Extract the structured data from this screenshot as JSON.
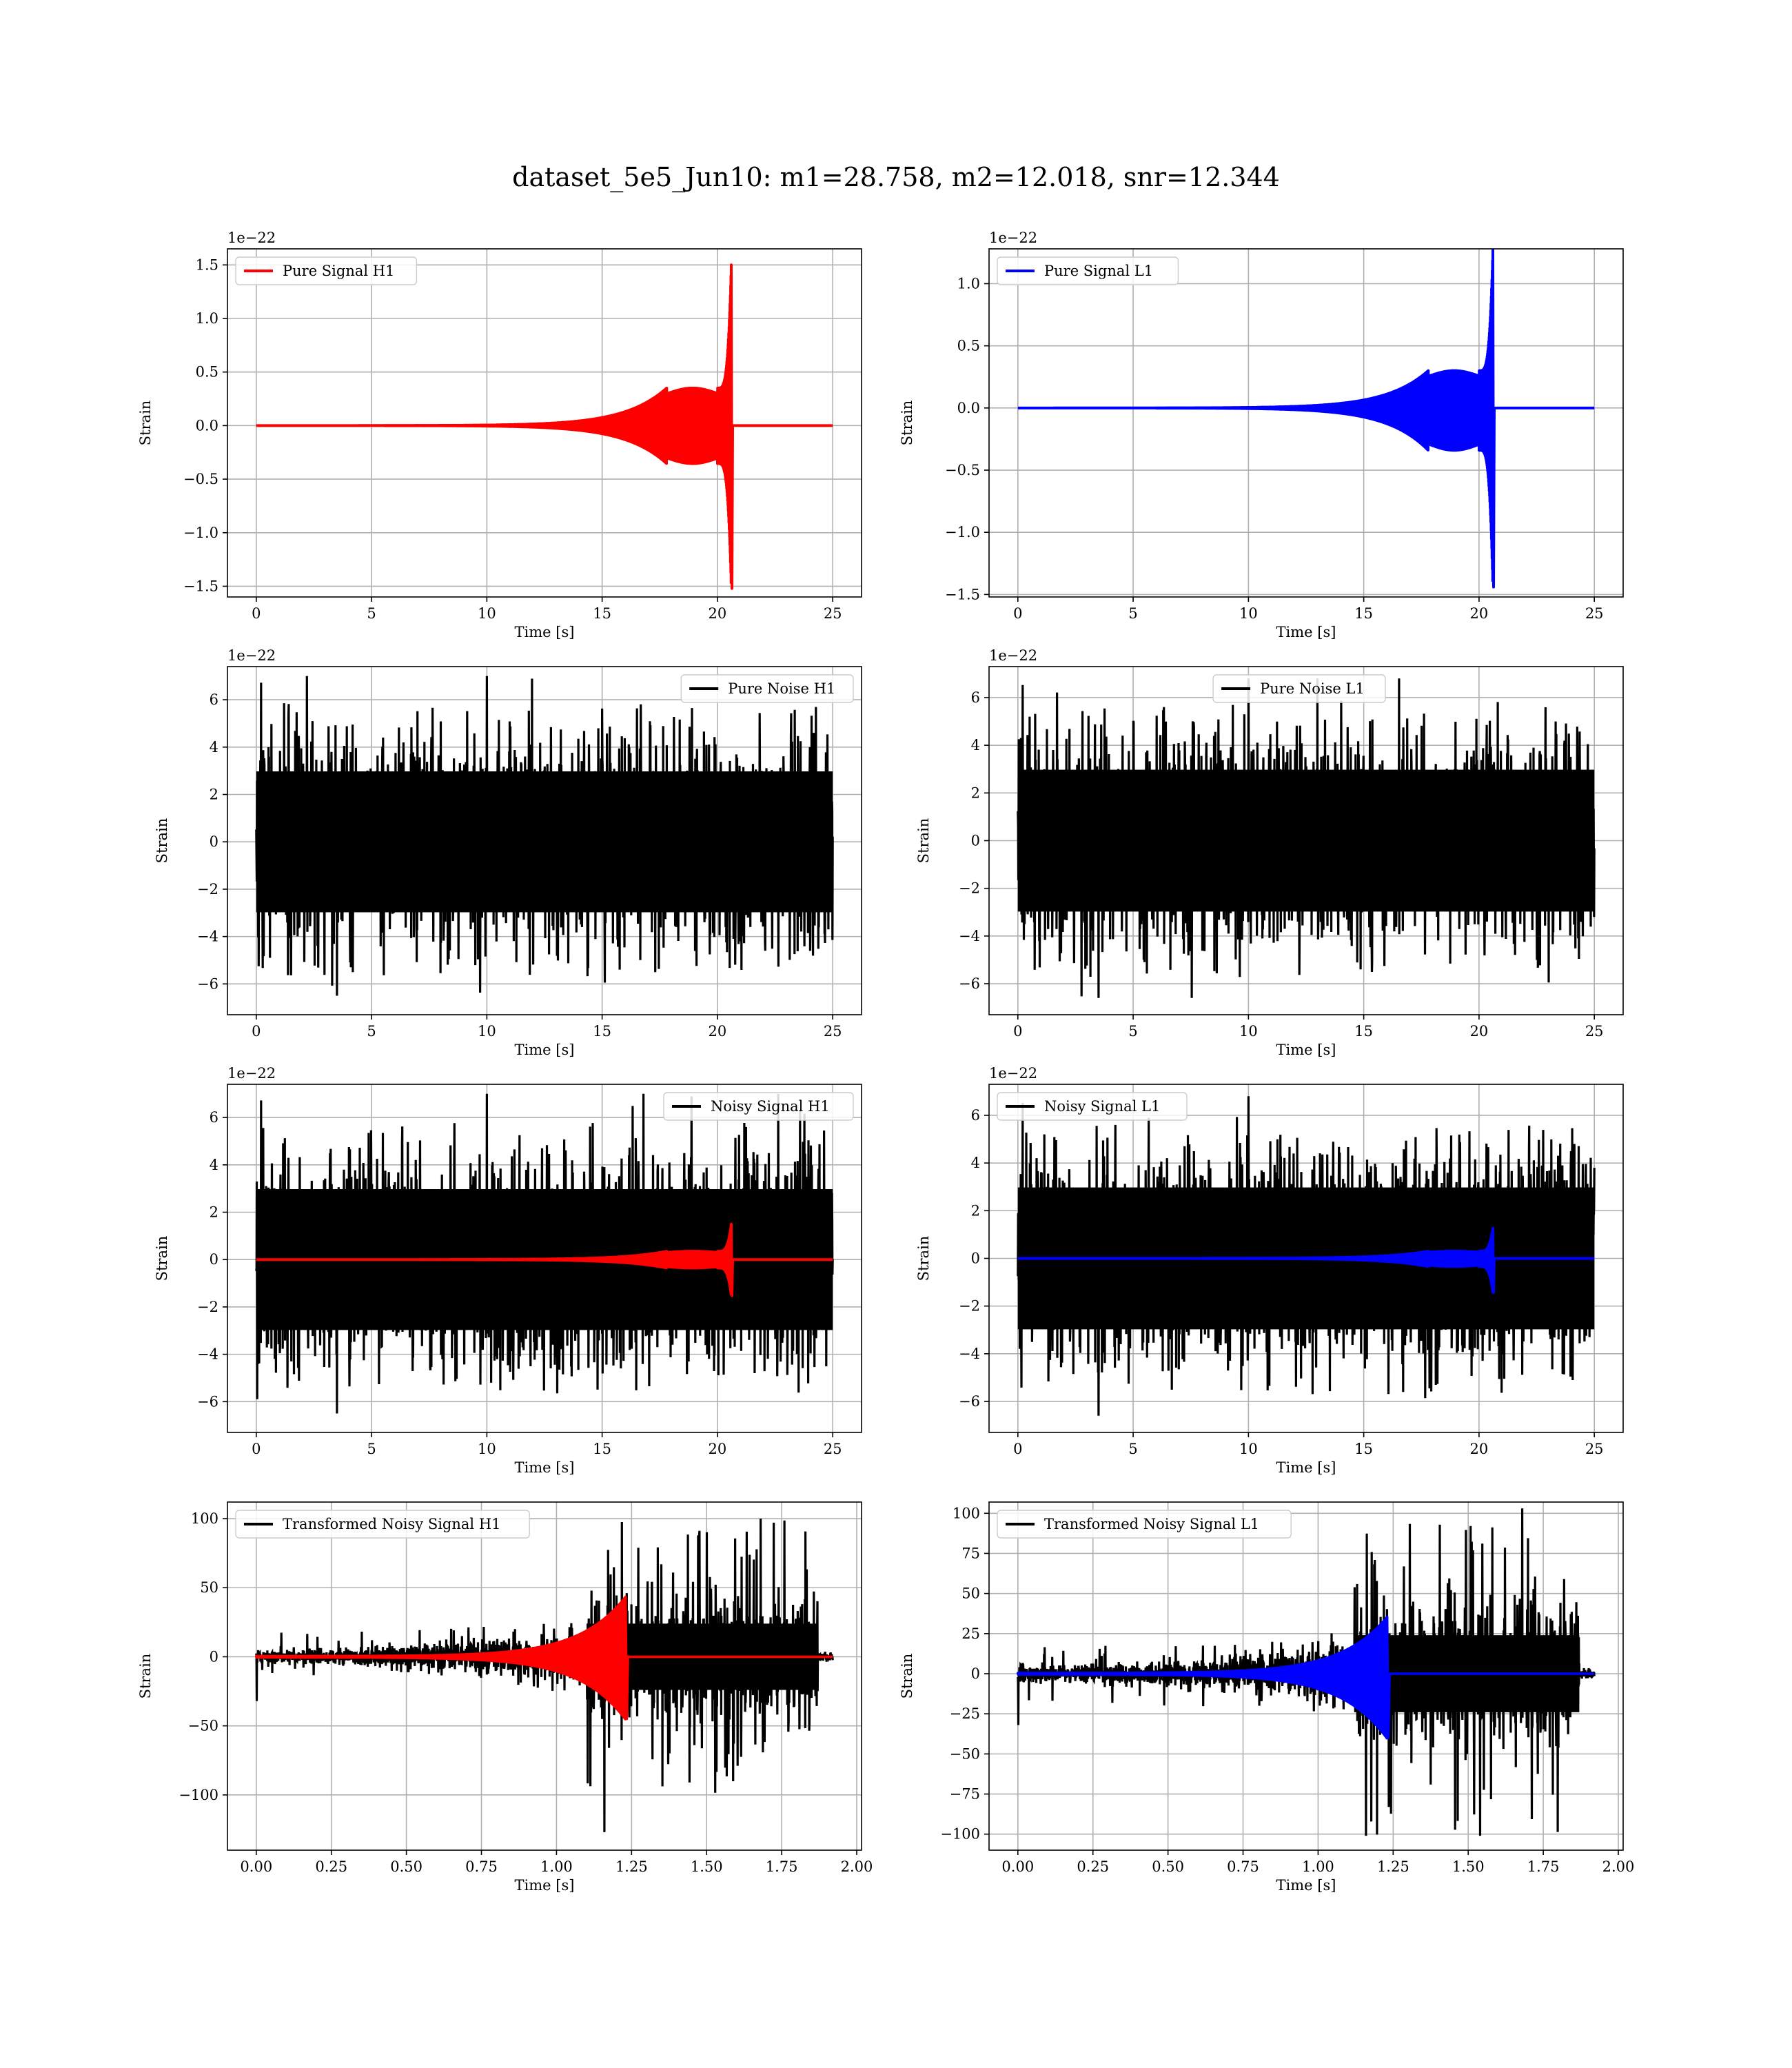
{
  "figure": {
    "suptitle": "dataset_5e5_Jun10: m1=28.758, m2=12.018, snr=12.344"
  },
  "colors": {
    "h1_signal": "#ff0000",
    "l1_signal": "#0000ff",
    "noise": "#000000",
    "grid": "#b0b0b0"
  },
  "chart_data": [
    {
      "id": "pure-signal-h1",
      "type": "line",
      "xlabel": "Time [s]",
      "ylabel": "Strain",
      "y_offset_label": "1e−22",
      "xlim": [
        -1.25,
        26.25
      ],
      "ylim": [
        -1.6,
        1.65
      ],
      "xticks": [
        0,
        5,
        10,
        15,
        20,
        25
      ],
      "xtick_labels": [
        "0",
        "5",
        "10",
        "15",
        "20",
        "25"
      ],
      "yticks": [
        -1.5,
        -1.0,
        -0.5,
        0.0,
        0.5,
        1.0,
        1.5
      ],
      "ytick_labels": [
        "−1.5",
        "−1.0",
        "−0.5",
        "0.0",
        "0.5",
        "1.0",
        "1.5"
      ],
      "grid": true,
      "legend_position": "upper-left",
      "series": [
        {
          "name": "Pure Signal H1",
          "kind": "chirp",
          "color": "#ff0000",
          "legend": true,
          "t_start": 0,
          "t_end": 25,
          "t_merger": 20.6,
          "plateau": 0.35,
          "peak": 1.5,
          "min": -1.52
        }
      ]
    },
    {
      "id": "pure-signal-l1",
      "type": "line",
      "xlabel": "Time [s]",
      "ylabel": "Strain",
      "y_offset_label": "1e−22",
      "xlim": [
        -1.25,
        26.25
      ],
      "ylim": [
        -1.52,
        1.28
      ],
      "xticks": [
        0,
        5,
        10,
        15,
        20,
        25
      ],
      "xtick_labels": [
        "0",
        "5",
        "10",
        "15",
        "20",
        "25"
      ],
      "yticks": [
        -1.5,
        -1.0,
        -0.5,
        0.0,
        0.5,
        1.0
      ],
      "ytick_labels": [
        "−1.5",
        "−1.0",
        "−0.5",
        "0.0",
        "0.5",
        "1.0"
      ],
      "grid": true,
      "legend_position": "upper-left",
      "series": [
        {
          "name": "Pure Signal L1",
          "kind": "chirp",
          "color": "#0000ff",
          "legend": true,
          "t_start": 0,
          "t_end": 25,
          "t_merger": 20.6,
          "plateau": 0.3,
          "peak": 1.27,
          "min": -1.44
        }
      ]
    },
    {
      "id": "pure-noise-h1",
      "type": "line",
      "xlabel": "Time [s]",
      "ylabel": "Strain",
      "y_offset_label": "1e−22",
      "xlim": [
        -1.25,
        26.25
      ],
      "ylim": [
        -7.3,
        7.4
      ],
      "xticks": [
        0,
        5,
        10,
        15,
        20,
        25
      ],
      "xtick_labels": [
        "0",
        "5",
        "10",
        "15",
        "20",
        "25"
      ],
      "yticks": [
        -6,
        -4,
        -2,
        0,
        2,
        4,
        6
      ],
      "ytick_labels": [
        "−6",
        "−4",
        "−2",
        "0",
        "2",
        "4",
        "6"
      ],
      "grid": true,
      "legend_position": "upper-right",
      "series": [
        {
          "name": "Pure Noise H1",
          "kind": "noise",
          "color": "#000000",
          "legend": true,
          "t_start": 0,
          "t_end": 25,
          "envelope": 3.5,
          "max": 7.0,
          "min": -6.5
        }
      ]
    },
    {
      "id": "pure-noise-l1",
      "type": "line",
      "xlabel": "Time [s]",
      "ylabel": "Strain",
      "y_offset_label": "1e−22",
      "xlim": [
        -1.25,
        26.25
      ],
      "ylim": [
        -7.3,
        7.3
      ],
      "xticks": [
        0,
        5,
        10,
        15,
        20,
        25
      ],
      "xtick_labels": [
        "0",
        "5",
        "10",
        "15",
        "20",
        "25"
      ],
      "yticks": [
        -6,
        -4,
        -2,
        0,
        2,
        4,
        6
      ],
      "ytick_labels": [
        "−6",
        "−4",
        "−2",
        "0",
        "2",
        "4",
        "6"
      ],
      "grid": true,
      "legend_position": "upper-center",
      "series": [
        {
          "name": "Pure Noise L1",
          "kind": "noise",
          "color": "#000000",
          "legend": true,
          "t_start": 0,
          "t_end": 25,
          "envelope": 3.5,
          "max": 6.8,
          "min": -6.6
        }
      ]
    },
    {
      "id": "noisy-signal-h1",
      "type": "line",
      "xlabel": "Time [s]",
      "ylabel": "Strain",
      "y_offset_label": "1e−22",
      "xlim": [
        -1.25,
        26.25
      ],
      "ylim": [
        -7.3,
        7.4
      ],
      "xticks": [
        0,
        5,
        10,
        15,
        20,
        25
      ],
      "xtick_labels": [
        "0",
        "5",
        "10",
        "15",
        "20",
        "25"
      ],
      "yticks": [
        -6,
        -4,
        -2,
        0,
        2,
        4,
        6
      ],
      "ytick_labels": [
        "−6",
        "−4",
        "−2",
        "0",
        "2",
        "4",
        "6"
      ],
      "grid": true,
      "legend_position": "upper-right",
      "series": [
        {
          "name": "Noisy Signal H1",
          "kind": "noise",
          "color": "#000000",
          "legend": true,
          "t_start": 0,
          "t_end": 25,
          "envelope": 3.5,
          "max": 7.0,
          "min": -6.5
        },
        {
          "name": "",
          "kind": "chirp",
          "color": "#ff0000",
          "legend": false,
          "t_start": 0,
          "t_end": 25,
          "t_merger": 20.6,
          "plateau": 0.35,
          "peak": 1.5,
          "min": -1.52
        }
      ]
    },
    {
      "id": "noisy-signal-l1",
      "type": "line",
      "xlabel": "Time [s]",
      "ylabel": "Strain",
      "y_offset_label": "1e−22",
      "xlim": [
        -1.25,
        26.25
      ],
      "ylim": [
        -7.3,
        7.3
      ],
      "xticks": [
        0,
        5,
        10,
        15,
        20,
        25
      ],
      "xtick_labels": [
        "0",
        "5",
        "10",
        "15",
        "20",
        "25"
      ],
      "yticks": [
        -6,
        -4,
        -2,
        0,
        2,
        4,
        6
      ],
      "ytick_labels": [
        "−6",
        "−4",
        "−2",
        "0",
        "2",
        "4",
        "6"
      ],
      "grid": true,
      "legend_position": "upper-left",
      "series": [
        {
          "name": "Noisy Signal L1",
          "kind": "noise",
          "color": "#000000",
          "legend": true,
          "t_start": 0,
          "t_end": 25,
          "envelope": 3.5,
          "max": 6.8,
          "min": -6.6
        },
        {
          "name": "",
          "kind": "chirp",
          "color": "#0000ff",
          "legend": false,
          "t_start": 0,
          "t_end": 25,
          "t_merger": 20.6,
          "plateau": 0.3,
          "peak": 1.27,
          "min": -1.44
        }
      ]
    },
    {
      "id": "transformed-noisy-signal-h1",
      "type": "line",
      "xlabel": "Time [s]",
      "ylabel": "Strain",
      "y_offset_label": "",
      "xlim": [
        -0.096,
        2.016
      ],
      "ylim": [
        -140,
        112
      ],
      "xticks": [
        0,
        0.25,
        0.5,
        0.75,
        1.0,
        1.25,
        1.5,
        1.75,
        2.0
      ],
      "xtick_labels": [
        "0.00",
        "0.25",
        "0.50",
        "0.75",
        "1.00",
        "1.25",
        "1.50",
        "1.75",
        "2.00"
      ],
      "yticks": [
        -100,
        -50,
        0,
        50,
        100
      ],
      "ytick_labels": [
        "−100",
        "−50",
        "0",
        "50",
        "100"
      ],
      "grid": true,
      "legend_position": "upper-left",
      "series": [
        {
          "name": "Transformed Noisy Signal H1",
          "kind": "whitened-noise",
          "color": "#000000",
          "legend": true,
          "t_start": 0,
          "t_end": 1.92,
          "t_step": 1.1,
          "t_stop": 1.87,
          "max": 100,
          "min": -127
        },
        {
          "name": "",
          "kind": "whitened-chirp",
          "color": "#ff0000",
          "legend": false,
          "t_start": 0,
          "t_end": 1.92,
          "t_merger": 1.23,
          "peak": 43,
          "min": -45
        }
      ]
    },
    {
      "id": "transformed-noisy-signal-l1",
      "type": "line",
      "xlabel": "Time [s]",
      "ylabel": "Strain",
      "y_offset_label": "",
      "xlim": [
        -0.096,
        2.016
      ],
      "ylim": [
        -110,
        107
      ],
      "xticks": [
        0,
        0.25,
        0.5,
        0.75,
        1.0,
        1.25,
        1.5,
        1.75,
        2.0
      ],
      "xtick_labels": [
        "0.00",
        "0.25",
        "0.50",
        "0.75",
        "1.00",
        "1.25",
        "1.50",
        "1.75",
        "2.00"
      ],
      "yticks": [
        -100,
        -75,
        -50,
        -25,
        0,
        25,
        50,
        75,
        100
      ],
      "ytick_labels": [
        "−100",
        "−75",
        "−50",
        "−25",
        "0",
        "25",
        "50",
        "75",
        "100"
      ],
      "grid": true,
      "legend_position": "upper-left",
      "series": [
        {
          "name": "Transformed Noisy Signal L1",
          "kind": "whitened-noise",
          "color": "#000000",
          "legend": true,
          "t_start": 0,
          "t_end": 1.92,
          "t_step": 1.12,
          "t_stop": 1.87,
          "max": 103,
          "min": -101
        },
        {
          "name": "",
          "kind": "whitened-chirp",
          "color": "#0000ff",
          "legend": false,
          "t_start": 0,
          "t_end": 1.92,
          "t_merger": 1.23,
          "peak": 35,
          "min": -40
        }
      ]
    }
  ]
}
